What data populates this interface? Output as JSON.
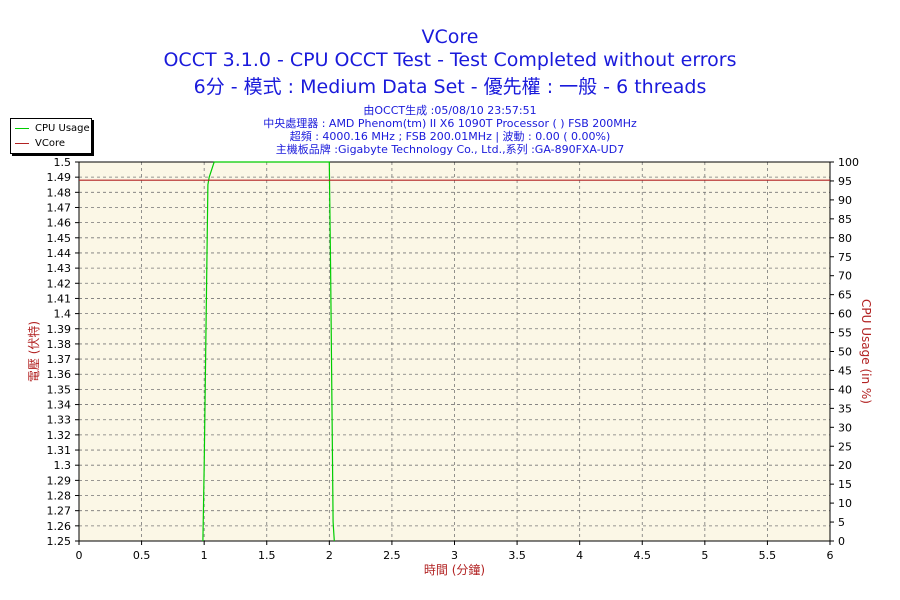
{
  "title_lines": [
    "VCore",
    "OCCT 3.1.0 - CPU OCCT Test - Test Completed without errors",
    "6分 - 模式 : Medium Data Set - 優先權 : 一般 - 6 threads"
  ],
  "info_lines": [
    "由OCCT生成 :05/08/10 23:57:51",
    "中央處理器 : AMD Phenom(tm) II X6 1090T Processor (   ) FSB 200MHz",
    "超頻 : 4000.16 MHz ; FSB 200.01MHz | 波動 : 0.00 ( 0.00%)",
    "主機板品牌 :Gigabyte Technology Co., Ltd.,系列 :GA-890FXA-UD7"
  ],
  "colors": {
    "title": "#1a1adb",
    "axis_label": "#b22222",
    "plot_bg": "#fbf7e6",
    "grid": "#777777",
    "cpu_usage": "#00cc00",
    "vcore": "#b22222"
  },
  "chart_data": {
    "type": "line",
    "xlabel": "時間 (分鐘)",
    "ylabel_left": "電壓 (伏特)",
    "ylabel_right": "CPU Usage (in %)",
    "xlim": [
      0,
      6
    ],
    "ylim_left": [
      1.25,
      1.5
    ],
    "ylim_right": [
      0,
      100
    ],
    "x_ticks": [
      "0",
      "0.5",
      "1",
      "1.5",
      "2",
      "2.5",
      "3",
      "3.5",
      "4",
      "4.5",
      "5",
      "5.5",
      "6"
    ],
    "y_left_ticks": [
      "1.25",
      "1.26",
      "1.27",
      "1.28",
      "1.29",
      "1.3",
      "1.31",
      "1.32",
      "1.33",
      "1.34",
      "1.35",
      "1.36",
      "1.37",
      "1.38",
      "1.39",
      "1.4",
      "1.41",
      "1.42",
      "1.43",
      "1.44",
      "1.45",
      "1.46",
      "1.47",
      "1.48",
      "1.49",
      "1.5"
    ],
    "y_right_ticks": [
      "0",
      "5",
      "10",
      "15",
      "20",
      "25",
      "30",
      "35",
      "40",
      "45",
      "50",
      "55",
      "60",
      "65",
      "70",
      "75",
      "80",
      "85",
      "90",
      "95",
      "100"
    ],
    "grid": true,
    "legend_position": "top-left",
    "series": [
      {
        "name": "CPU Usage",
        "axis": "right",
        "x": [
          0.99,
          1.0,
          1.02,
          1.03,
          1.04,
          1.06,
          1.08,
          1.2,
          1.4,
          1.6,
          1.8,
          2.0,
          2.01,
          2.02,
          2.03,
          2.04
        ],
        "y": [
          0,
          20,
          70,
          94,
          96,
          98,
          100,
          100,
          100,
          100,
          100,
          100,
          72,
          40,
          5,
          0
        ]
      },
      {
        "name": "VCore",
        "axis": "left",
        "x": [
          0,
          6
        ],
        "y": [
          1.488,
          1.488
        ]
      }
    ]
  }
}
